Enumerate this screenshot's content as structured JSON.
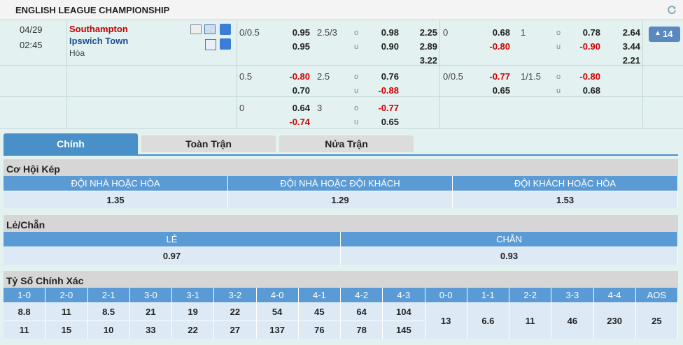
{
  "header": {
    "title": "ENGLISH LEAGUE CHAMPIONSHIP"
  },
  "match": {
    "date": "04/29",
    "time": "02:45",
    "home": "Southampton",
    "away": "Ipswich Town",
    "draw": "Hòa",
    "more": "14"
  },
  "odds": {
    "over_label": "o",
    "under_label": "u",
    "rows": [
      {
        "hdp": "0/0.5",
        "hdp_home": "0.95",
        "hdp_away": "0.95",
        "ou": "2.5/3",
        "over": "0.98",
        "under": "0.90",
        "x12": [
          "2.25",
          "2.89",
          "3.22"
        ],
        "h_hdp": "0",
        "h_hdp_home": "0.68",
        "h_hdp_away": "-0.80",
        "h_ou": "1",
        "h_over": "0.78",
        "h_under": "-0.90",
        "h_x12": [
          "2.64",
          "3.44",
          "2.21"
        ]
      },
      {
        "hdp": "0.5",
        "hdp_home": "-0.80",
        "hdp_away": "0.70",
        "ou": "2.5",
        "over": "0.76",
        "under": "-0.88",
        "h_hdp": "0/0.5",
        "h_hdp_home": "-0.77",
        "h_hdp_away": "0.65",
        "h_ou": "1/1.5",
        "h_over": "-0.80",
        "h_under": "0.68"
      },
      {
        "hdp": "0",
        "hdp_home": "0.64",
        "hdp_away": "-0.74",
        "ou": "3",
        "over": "-0.77",
        "under": "0.65"
      }
    ]
  },
  "tabs": [
    "Chính",
    "Toàn Trận",
    "Nửa Trận"
  ],
  "double_chance": {
    "title": "Cơ Hội Kép",
    "headers": [
      "ĐỘI NHÀ HOẶC HÒA",
      "ĐỘI NHÀ HOẶC ĐỘI KHÁCH",
      "ĐỘI KHÁCH HOẶC HÒA"
    ],
    "values": [
      "1.35",
      "1.29",
      "1.53"
    ]
  },
  "odd_even": {
    "title": "Lẻ/Chẵn",
    "headers": [
      "LẺ",
      "CHẴN"
    ],
    "values": [
      "0.97",
      "0.93"
    ]
  },
  "correct_score": {
    "title": "Tỷ Số Chính Xác",
    "columns": [
      {
        "label": "1-0",
        "values": [
          "8.8",
          "11"
        ]
      },
      {
        "label": "2-0",
        "values": [
          "11",
          "15"
        ]
      },
      {
        "label": "2-1",
        "values": [
          "8.5",
          "10"
        ]
      },
      {
        "label": "3-0",
        "values": [
          "21",
          "33"
        ]
      },
      {
        "label": "3-1",
        "values": [
          "19",
          "22"
        ]
      },
      {
        "label": "3-2",
        "values": [
          "22",
          "27"
        ]
      },
      {
        "label": "4-0",
        "values": [
          "54",
          "137"
        ]
      },
      {
        "label": "4-1",
        "values": [
          "45",
          "76"
        ]
      },
      {
        "label": "4-2",
        "values": [
          "64",
          "78"
        ]
      },
      {
        "label": "4-3",
        "values": [
          "104",
          "145"
        ]
      },
      {
        "label": "0-0",
        "values": [
          "13"
        ]
      },
      {
        "label": "1-1",
        "values": [
          "6.6"
        ]
      },
      {
        "label": "2-2",
        "values": [
          "11"
        ]
      },
      {
        "label": "3-3",
        "values": [
          "46"
        ]
      },
      {
        "label": "4-4",
        "values": [
          "230"
        ]
      },
      {
        "label": "AOS",
        "values": [
          "25"
        ]
      }
    ]
  }
}
